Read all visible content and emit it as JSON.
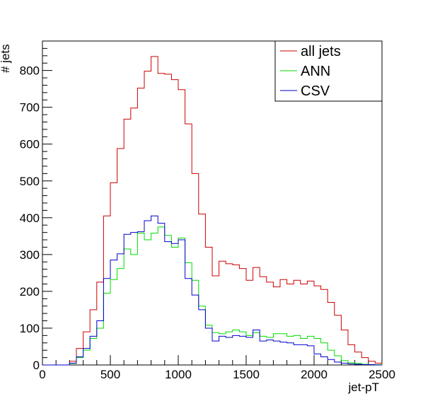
{
  "chart_data": {
    "type": "line",
    "title": "",
    "xlabel": "jet-pT",
    "ylabel": "# jets",
    "xlim": [
      0,
      2500
    ],
    "ylim": [
      0,
      880
    ],
    "grid": false,
    "legend_position": "top-right",
    "bin_width": 50,
    "x_ticks": [
      0,
      500,
      1000,
      1500,
      2000,
      2500
    ],
    "x_tick_labels": [
      "0",
      "500",
      "1000",
      "1500",
      "2000",
      "2500"
    ],
    "y_ticks": [
      0,
      100,
      200,
      300,
      400,
      500,
      600,
      700,
      800
    ],
    "y_tick_labels": [
      "0",
      "100",
      "200",
      "300",
      "400",
      "500",
      "600",
      "700",
      "800"
    ],
    "bin_edges": [
      0,
      50,
      100,
      150,
      200,
      250,
      300,
      350,
      400,
      450,
      500,
      550,
      600,
      650,
      700,
      750,
      800,
      850,
      900,
      950,
      1000,
      1050,
      1100,
      1150,
      1200,
      1250,
      1300,
      1350,
      1400,
      1450,
      1500,
      1550,
      1600,
      1650,
      1700,
      1750,
      1800,
      1850,
      1900,
      1950,
      2000,
      2050,
      2100,
      2150,
      2200,
      2250,
      2300,
      2350,
      2400,
      2450,
      2500
    ],
    "series": [
      {
        "name": "all jets",
        "color": "#cc0000",
        "values": [
          0,
          0,
          0,
          0,
          10,
          45,
          90,
          150,
          225,
          405,
          495,
          588,
          668,
          698,
          752,
          798,
          838,
          792,
          790,
          775,
          748,
          655,
          520,
          410,
          320,
          242,
          282,
          275,
          272,
          262,
          230,
          265,
          240,
          225,
          212,
          232,
          220,
          230,
          220,
          228,
          215,
          205,
          170,
          135,
          95,
          55,
          35,
          20,
          10,
          5,
          2
        ]
      },
      {
        "name": "ANN",
        "color": "#00dd00",
        "values": [
          0,
          0,
          0,
          0,
          4,
          20,
          40,
          72,
          100,
          195,
          232,
          262,
          315,
          300,
          358,
          340,
          358,
          375,
          352,
          320,
          345,
          278,
          230,
          160,
          108,
          88,
          85,
          90,
          95,
          90,
          80,
          88,
          78,
          75,
          85,
          85,
          78,
          80,
          72,
          78,
          72,
          60,
          40,
          25,
          12,
          6,
          4,
          2,
          1,
          1,
          0
        ]
      },
      {
        "name": "CSV",
        "color": "#0000cc",
        "values": [
          0,
          0,
          0,
          0,
          5,
          22,
          45,
          78,
          120,
          235,
          285,
          302,
          355,
          360,
          362,
          392,
          405,
          385,
          335,
          330,
          340,
          235,
          190,
          150,
          100,
          65,
          78,
          75,
          80,
          78,
          75,
          95,
          65,
          68,
          65,
          62,
          60,
          55,
          55,
          52,
          30,
          22,
          15,
          8,
          5,
          3,
          2,
          1,
          1,
          0,
          0
        ]
      }
    ]
  }
}
